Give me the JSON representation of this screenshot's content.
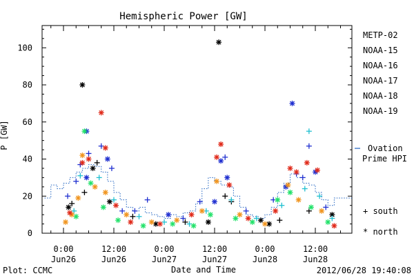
{
  "chart_data": {
    "type": "scatter",
    "title": "Hemispheric Power [GW]",
    "ylabel": "P [GW]",
    "xlabel": "Date and Time",
    "ylim": [
      0,
      112
    ],
    "xlim": [
      "2012-06-25 19:30",
      "2012-06-28 21:00"
    ],
    "yticks": [
      0,
      20,
      40,
      60,
      80,
      100
    ],
    "xticks": [
      {
        "time": "2012-06-26 00:00",
        "label1": "0:00",
        "label2": "Jun26"
      },
      {
        "time": "2012-06-26 12:00",
        "label1": "12:00",
        "label2": "Jun26"
      },
      {
        "time": "2012-06-27 00:00",
        "label1": "0:00",
        "label2": "Jun27"
      },
      {
        "time": "2012-06-27 12:00",
        "label1": "12:00",
        "label2": "Jun27"
      },
      {
        "time": "2012-06-28 00:00",
        "label1": "0:00",
        "label2": "Jun28"
      },
      {
        "time": "2012-06-28 12:00",
        "label1": "12:00",
        "label2": "Jun28"
      }
    ],
    "marker_legend": [
      {
        "symbol": "+",
        "label": "south"
      },
      {
        "symbol": "*",
        "label": "north"
      }
    ],
    "ovation_label_line1": "Ovation",
    "ovation_label_line2": "Prime HPI",
    "ovation_color": "#1a5fbf",
    "series": [
      {
        "name": "METP-02",
        "color": "#000000",
        "points": [
          {
            "h": 4.5,
            "v": 80,
            "m": "*"
          },
          {
            "h": 5.0,
            "v": 22,
            "m": "+"
          },
          {
            "h": 7.0,
            "v": 35,
            "m": "*"
          },
          {
            "h": 8.0,
            "v": 38,
            "m": "+"
          },
          {
            "h": 1.2,
            "v": 14,
            "m": "*"
          },
          {
            "h": 2.0,
            "v": 16,
            "m": "+"
          },
          {
            "h": 11.0,
            "v": 17,
            "m": "*"
          },
          {
            "h": 16.5,
            "v": 9,
            "m": "+"
          },
          {
            "h": 22.0,
            "v": 5,
            "m": "*"
          },
          {
            "h": 29.0,
            "v": 6,
            "m": "+"
          },
          {
            "h": 34.5,
            "v": 6,
            "m": "*"
          },
          {
            "h": 37.0,
            "v": 103,
            "m": "*"
          },
          {
            "h": 38.5,
            "v": 20,
            "m": "+"
          },
          {
            "h": 40.0,
            "v": 17,
            "m": "+"
          },
          {
            "h": 47.0,
            "v": 7,
            "m": "*"
          },
          {
            "h": 49.0,
            "v": 5,
            "m": "*"
          },
          {
            "h": 51.5,
            "v": 7,
            "m": "+"
          },
          {
            "h": 58.5,
            "v": 12,
            "m": "+"
          },
          {
            "h": 64.0,
            "v": 10,
            "m": "*"
          }
        ]
      },
      {
        "name": "NOAA-15",
        "color": "#1f2fd0",
        "points": [
          {
            "h": 1.0,
            "v": 20,
            "m": "+"
          },
          {
            "h": 3.0,
            "v": 28,
            "m": "+"
          },
          {
            "h": 4.0,
            "v": 37,
            "m": "+"
          },
          {
            "h": 5.5,
            "v": 30,
            "m": "*"
          },
          {
            "h": 6.0,
            "v": 43,
            "m": "+"
          },
          {
            "h": 5.5,
            "v": 55,
            "m": "*"
          },
          {
            "h": 9.0,
            "v": 47,
            "m": "+"
          },
          {
            "h": 10.5,
            "v": 40,
            "m": "*"
          },
          {
            "h": 11.5,
            "v": 35,
            "m": "+"
          },
          {
            "h": 14.0,
            "v": 12,
            "m": "+"
          },
          {
            "h": 17.0,
            "v": 12,
            "m": "+"
          },
          {
            "h": 20.0,
            "v": 18,
            "m": "+"
          },
          {
            "h": 25.0,
            "v": 10,
            "m": "*"
          },
          {
            "h": 28.5,
            "v": 8,
            "m": "+"
          },
          {
            "h": 32.5,
            "v": 17,
            "m": "+"
          },
          {
            "h": 36.0,
            "v": 17,
            "m": "*"
          },
          {
            "h": 37.5,
            "v": 39,
            "m": "*"
          },
          {
            "h": 38.5,
            "v": 41,
            "m": "+"
          },
          {
            "h": 39.0,
            "v": 30,
            "m": "*"
          },
          {
            "h": 43.5,
            "v": 12,
            "m": "+"
          },
          {
            "h": 50.0,
            "v": 18,
            "m": "+"
          },
          {
            "h": 53.0,
            "v": 25,
            "m": "*"
          },
          {
            "h": 54.5,
            "v": 70,
            "m": "*"
          },
          {
            "h": 55.5,
            "v": 32,
            "m": "+"
          },
          {
            "h": 57.0,
            "v": 30,
            "m": "+"
          },
          {
            "h": 58.5,
            "v": 47,
            "m": "+"
          },
          {
            "h": 60.0,
            "v": 33,
            "m": "*"
          },
          {
            "h": 62.5,
            "v": 14,
            "m": "+"
          }
        ]
      },
      {
        "name": "NOAA-16",
        "color": "#1fbfd0",
        "points": [
          {
            "h": 2.5,
            "v": 12,
            "m": "+"
          },
          {
            "h": 4.0,
            "v": 31,
            "m": "+"
          },
          {
            "h": 8.5,
            "v": 30,
            "m": "+"
          },
          {
            "h": 12.0,
            "v": 18,
            "m": "+"
          },
          {
            "h": 18.0,
            "v": 9,
            "m": "+"
          },
          {
            "h": 24.0,
            "v": 6,
            "m": "+"
          },
          {
            "h": 30.0,
            "v": 5,
            "m": "+"
          },
          {
            "h": 34.0,
            "v": 12,
            "m": "+"
          },
          {
            "h": 40.0,
            "v": 18,
            "m": "+"
          },
          {
            "h": 46.0,
            "v": 8,
            "m": "+"
          },
          {
            "h": 52.0,
            "v": 15,
            "m": "+"
          },
          {
            "h": 57.5,
            "v": 24,
            "m": "+"
          },
          {
            "h": 58.5,
            "v": 55,
            "m": "+"
          },
          {
            "h": 61.0,
            "v": 20,
            "m": "+"
          },
          {
            "h": 64.0,
            "v": 8,
            "m": "+"
          }
        ]
      },
      {
        "name": "NOAA-17",
        "color": "#22e26a",
        "points": [
          {
            "h": 3.0,
            "v": 9,
            "m": "*"
          },
          {
            "h": 5.0,
            "v": 55,
            "m": "*"
          },
          {
            "h": 6.5,
            "v": 27,
            "m": "*"
          },
          {
            "h": 9.5,
            "v": 14,
            "m": "*"
          },
          {
            "h": 13.0,
            "v": 7,
            "m": "*"
          },
          {
            "h": 19.0,
            "v": 4,
            "m": "*"
          },
          {
            "h": 26.0,
            "v": 5,
            "m": "*"
          },
          {
            "h": 31.0,
            "v": 4,
            "m": "*"
          },
          {
            "h": 35.0,
            "v": 10,
            "m": "*"
          },
          {
            "h": 41.0,
            "v": 8,
            "m": "*"
          },
          {
            "h": 45.0,
            "v": 6,
            "m": "*"
          },
          {
            "h": 51.0,
            "v": 18,
            "m": "*"
          },
          {
            "h": 54.0,
            "v": 22,
            "m": "*"
          },
          {
            "h": 59.0,
            "v": 14,
            "m": "*"
          },
          {
            "h": 63.0,
            "v": 6,
            "m": "*"
          }
        ]
      },
      {
        "name": "NOAA-18",
        "color": "#f0941e",
        "points": [
          {
            "h": 0.5,
            "v": 6,
            "m": "*"
          },
          {
            "h": 2.0,
            "v": 10,
            "m": "*"
          },
          {
            "h": 3.5,
            "v": 19,
            "m": "*"
          },
          {
            "h": 4.5,
            "v": 42,
            "m": "*"
          },
          {
            "h": 7.5,
            "v": 25,
            "m": "*"
          },
          {
            "h": 10.0,
            "v": 22,
            "m": "*"
          },
          {
            "h": 15.0,
            "v": 10,
            "m": "*"
          },
          {
            "h": 21.0,
            "v": 6,
            "m": "*"
          },
          {
            "h": 27.0,
            "v": 7,
            "m": "*"
          },
          {
            "h": 33.0,
            "v": 12,
            "m": "*"
          },
          {
            "h": 36.5,
            "v": 28,
            "m": "*"
          },
          {
            "h": 42.0,
            "v": 10,
            "m": "*"
          },
          {
            "h": 48.0,
            "v": 5,
            "m": "*"
          },
          {
            "h": 53.5,
            "v": 26,
            "m": "*"
          },
          {
            "h": 56.0,
            "v": 18,
            "m": "*"
          },
          {
            "h": 61.5,
            "v": 12,
            "m": "*"
          }
        ]
      },
      {
        "name": "NOAA-19",
        "color": "#e02a1a",
        "points": [
          {
            "h": 1.5,
            "v": 11,
            "m": "*"
          },
          {
            "h": 4.5,
            "v": 38,
            "m": "*"
          },
          {
            "h": 6.0,
            "v": 40,
            "m": "*"
          },
          {
            "h": 9.0,
            "v": 65,
            "m": "*"
          },
          {
            "h": 10.0,
            "v": 46,
            "m": "*"
          },
          {
            "h": 12.5,
            "v": 15,
            "m": "*"
          },
          {
            "h": 16.0,
            "v": 6,
            "m": "*"
          },
          {
            "h": 23.0,
            "v": 5,
            "m": "*"
          },
          {
            "h": 30.5,
            "v": 10,
            "m": "*"
          },
          {
            "h": 36.5,
            "v": 41,
            "m": "*"
          },
          {
            "h": 37.5,
            "v": 48,
            "m": "*"
          },
          {
            "h": 39.5,
            "v": 26,
            "m": "*"
          },
          {
            "h": 44.0,
            "v": 8,
            "m": "*"
          },
          {
            "h": 50.5,
            "v": 12,
            "m": "*"
          },
          {
            "h": 54.0,
            "v": 35,
            "m": "*"
          },
          {
            "h": 55.5,
            "v": 33,
            "m": "*"
          },
          {
            "h": 58.0,
            "v": 38,
            "m": "*"
          },
          {
            "h": 60.5,
            "v": 34,
            "m": "*"
          },
          {
            "h": 64.5,
            "v": 4,
            "m": "*"
          }
        ]
      }
    ],
    "ovation_steps": [
      [
        -4.5,
        19
      ],
      [
        -3,
        26
      ],
      [
        -1.5,
        24
      ],
      [
        0,
        27
      ],
      [
        1.5,
        30
      ],
      [
        3,
        33
      ],
      [
        4.5,
        35
      ],
      [
        6,
        37
      ],
      [
        7.5,
        36
      ],
      [
        9,
        33
      ],
      [
        10.5,
        28
      ],
      [
        12,
        22
      ],
      [
        13.5,
        18
      ],
      [
        15,
        14
      ],
      [
        16.5,
        12
      ],
      [
        18,
        14
      ],
      [
        19.5,
        11
      ],
      [
        21,
        10
      ],
      [
        22.5,
        9
      ],
      [
        24,
        8
      ],
      [
        25.5,
        10
      ],
      [
        27,
        9
      ],
      [
        28.5,
        11
      ],
      [
        30,
        12
      ],
      [
        31.5,
        16
      ],
      [
        33,
        24
      ],
      [
        34.5,
        30
      ],
      [
        36,
        28
      ],
      [
        37.5,
        26
      ],
      [
        39,
        25
      ],
      [
        40.5,
        20
      ],
      [
        42,
        14
      ],
      [
        43.5,
        10
      ],
      [
        45,
        9
      ],
      [
        46.5,
        8
      ],
      [
        48,
        10
      ],
      [
        49.5,
        14
      ],
      [
        51,
        22
      ],
      [
        52.5,
        27
      ],
      [
        54,
        32
      ],
      [
        55.5,
        30
      ],
      [
        57,
        27
      ],
      [
        58.5,
        26
      ],
      [
        60,
        22
      ],
      [
        61.5,
        18
      ],
      [
        63,
        15
      ],
      [
        64.5,
        19
      ]
    ]
  },
  "footer": {
    "plot_credit": "Plot: CCMC",
    "timestamp": "2012/06/28 19:40:08"
  }
}
